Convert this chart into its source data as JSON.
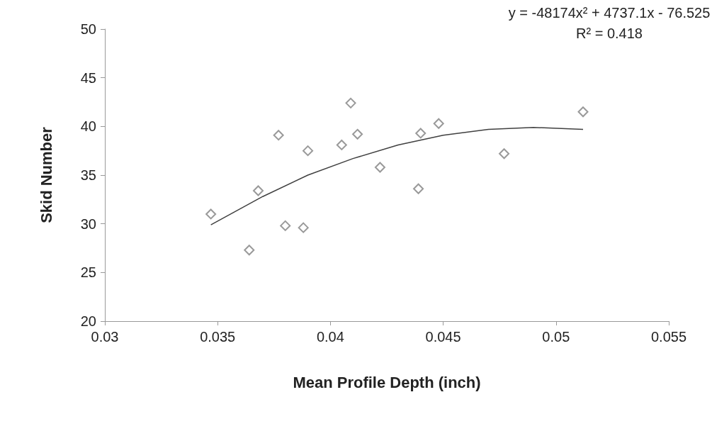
{
  "chart_data": {
    "type": "scatter",
    "xlabel": "Mean Profile Depth (inch)",
    "ylabel": "Skid Number",
    "xlim": [
      0.03,
      0.055
    ],
    "xticks": [
      0.03,
      0.035,
      0.04,
      0.045,
      0.05,
      0.055
    ],
    "ylim": [
      20,
      50
    ],
    "yticks": [
      20,
      25,
      30,
      35,
      40,
      45,
      50
    ],
    "grid": false,
    "annotations": [
      "y = -48174x² + 4737.1x - 76.525",
      "R² = 0.418"
    ],
    "series": [
      {
        "color": "#808080",
        "marker": "diamond",
        "x": [
          0.0347,
          0.0364,
          0.0368,
          0.0377,
          0.038,
          0.0388,
          0.039,
          0.0405,
          0.0409,
          0.0412,
          0.0422,
          0.0439,
          0.044,
          0.0448,
          0.0477,
          0.0512
        ],
        "values": [
          31.0,
          27.3,
          33.4,
          39.1,
          29.8,
          29.6,
          37.5,
          38.1,
          42.4,
          39.2,
          35.8,
          33.6,
          39.3,
          40.3,
          37.2,
          41.5
        ]
      },
      {
        "type": "line",
        "color": "#404040",
        "marker": "none",
        "line_style": "solid",
        "x": [
          0.0347,
          0.037,
          0.039,
          0.041,
          0.043,
          0.045,
          0.047,
          0.049,
          0.0512
        ],
        "values": [
          29.9,
          32.8,
          35.0,
          36.7,
          38.1,
          39.1,
          39.7,
          39.9,
          39.7
        ]
      }
    ]
  }
}
